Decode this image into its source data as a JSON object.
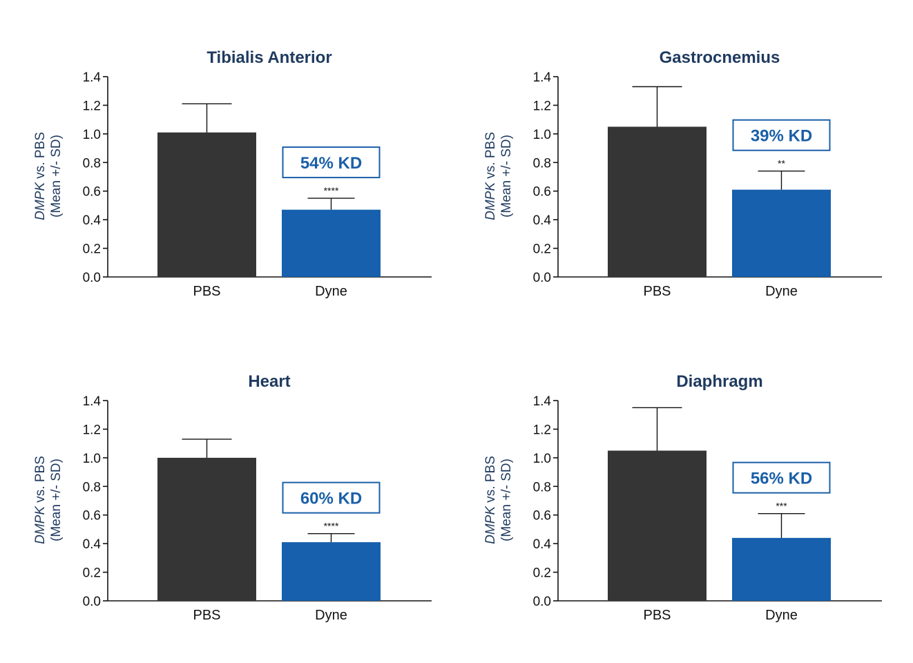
{
  "colors": {
    "pbs": "#353535",
    "dyne": "#1660ad",
    "title": "#1f3a5f",
    "kd": "#1a5fa8",
    "axis": "#111111"
  },
  "chart_data": [
    {
      "type": "bar",
      "title": "Tibialis Anterior",
      "ylabel_gene": "DMPK",
      "ylabel_line1_rest": " vs. PBS",
      "ylabel_line2": "(Mean +/- SD)",
      "categories": [
        "PBS",
        "Dyne"
      ],
      "values": [
        1.01,
        0.47
      ],
      "errors": [
        0.2,
        0.08
      ],
      "ylim": [
        0,
        1.4
      ],
      "yticks": [
        "0.0",
        "0.2",
        "0.4",
        "0.6",
        "0.8",
        "1.0",
        "1.2",
        "1.4"
      ],
      "annotation": "54% KD",
      "significance": "****"
    },
    {
      "type": "bar",
      "title": "Gastrocnemius",
      "ylabel_gene": "DMPK",
      "ylabel_line1_rest": " vs. PBS",
      "ylabel_line2": "(Mean +/- SD)",
      "categories": [
        "PBS",
        "Dyne"
      ],
      "values": [
        1.05,
        0.61
      ],
      "errors": [
        0.28,
        0.13
      ],
      "ylim": [
        0,
        1.4
      ],
      "yticks": [
        "0.0",
        "0.2",
        "0.4",
        "0.6",
        "0.8",
        "1.0",
        "1.2",
        "1.4"
      ],
      "annotation": "39% KD",
      "significance": "**"
    },
    {
      "type": "bar",
      "title": "Heart",
      "ylabel_gene": "DMPK",
      "ylabel_line1_rest": " vs. PBS",
      "ylabel_line2": "(Mean +/- SD)",
      "categories": [
        "PBS",
        "Dyne"
      ],
      "values": [
        1.0,
        0.41
      ],
      "errors": [
        0.13,
        0.06
      ],
      "ylim": [
        0,
        1.4
      ],
      "yticks": [
        "0.0",
        "0.2",
        "0.4",
        "0.6",
        "0.8",
        "1.0",
        "1.2",
        "1.4"
      ],
      "annotation": "60% KD",
      "significance": "****"
    },
    {
      "type": "bar",
      "title": "Diaphragm",
      "ylabel_gene": "DMPK",
      "ylabel_line1_rest": " vs. PBS",
      "ylabel_line2": "(Mean +/- SD)",
      "categories": [
        "PBS",
        "Dyne"
      ],
      "values": [
        1.05,
        0.44
      ],
      "errors": [
        0.3,
        0.17
      ],
      "ylim": [
        0,
        1.4
      ],
      "yticks": [
        "0.0",
        "0.2",
        "0.4",
        "0.6",
        "0.8",
        "1.0",
        "1.2",
        "1.4"
      ],
      "annotation": "56% KD",
      "significance": "***"
    }
  ]
}
